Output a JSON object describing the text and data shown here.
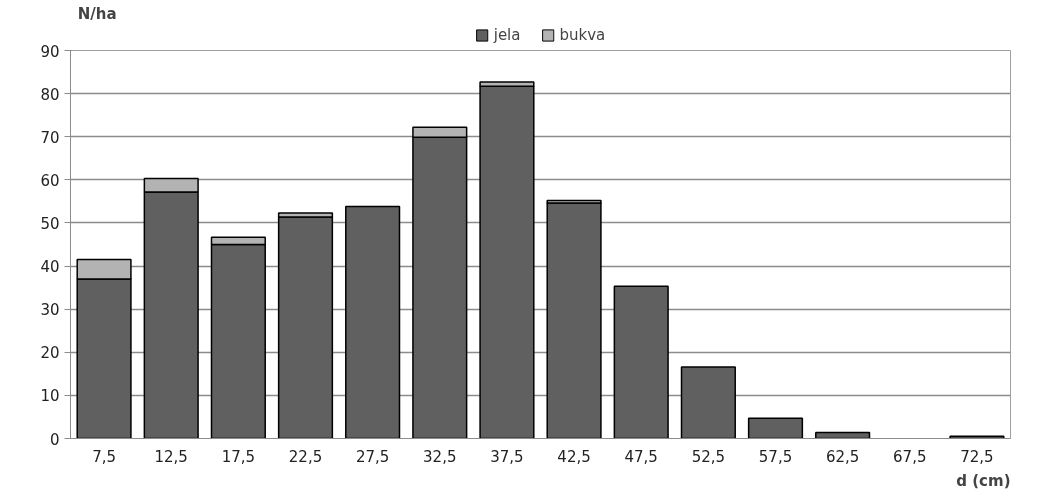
{
  "chart_data": {
    "type": "bar",
    "stacked": true,
    "xlabel": "d (cm)",
    "ylabel": "N/ha",
    "categories": [
      "7,5",
      "12,5",
      "17,5",
      "22,5",
      "27,5",
      "32,5",
      "37,5",
      "42,5",
      "47,5",
      "52,5",
      "57,5",
      "62,5",
      "67,5",
      "72,5"
    ],
    "series": [
      {
        "name": "jela",
        "color": "#606060",
        "values": [
          37.0,
          57.2,
          45.0,
          51.4,
          53.8,
          69.9,
          81.7,
          54.6,
          35.3,
          16.6,
          4.7,
          1.4,
          0,
          0.5
        ]
      },
      {
        "name": "bukva",
        "color": "#b3b3b3",
        "values": [
          4.5,
          3.1,
          1.7,
          0.9,
          0,
          2.3,
          1.0,
          0.6,
          0,
          0,
          0,
          0,
          0,
          0
        ]
      }
    ],
    "ylim": [
      0,
      90
    ],
    "yticks": [
      0,
      10,
      20,
      30,
      40,
      50,
      60,
      70,
      80,
      90
    ],
    "grid": "y",
    "legend": "top"
  }
}
